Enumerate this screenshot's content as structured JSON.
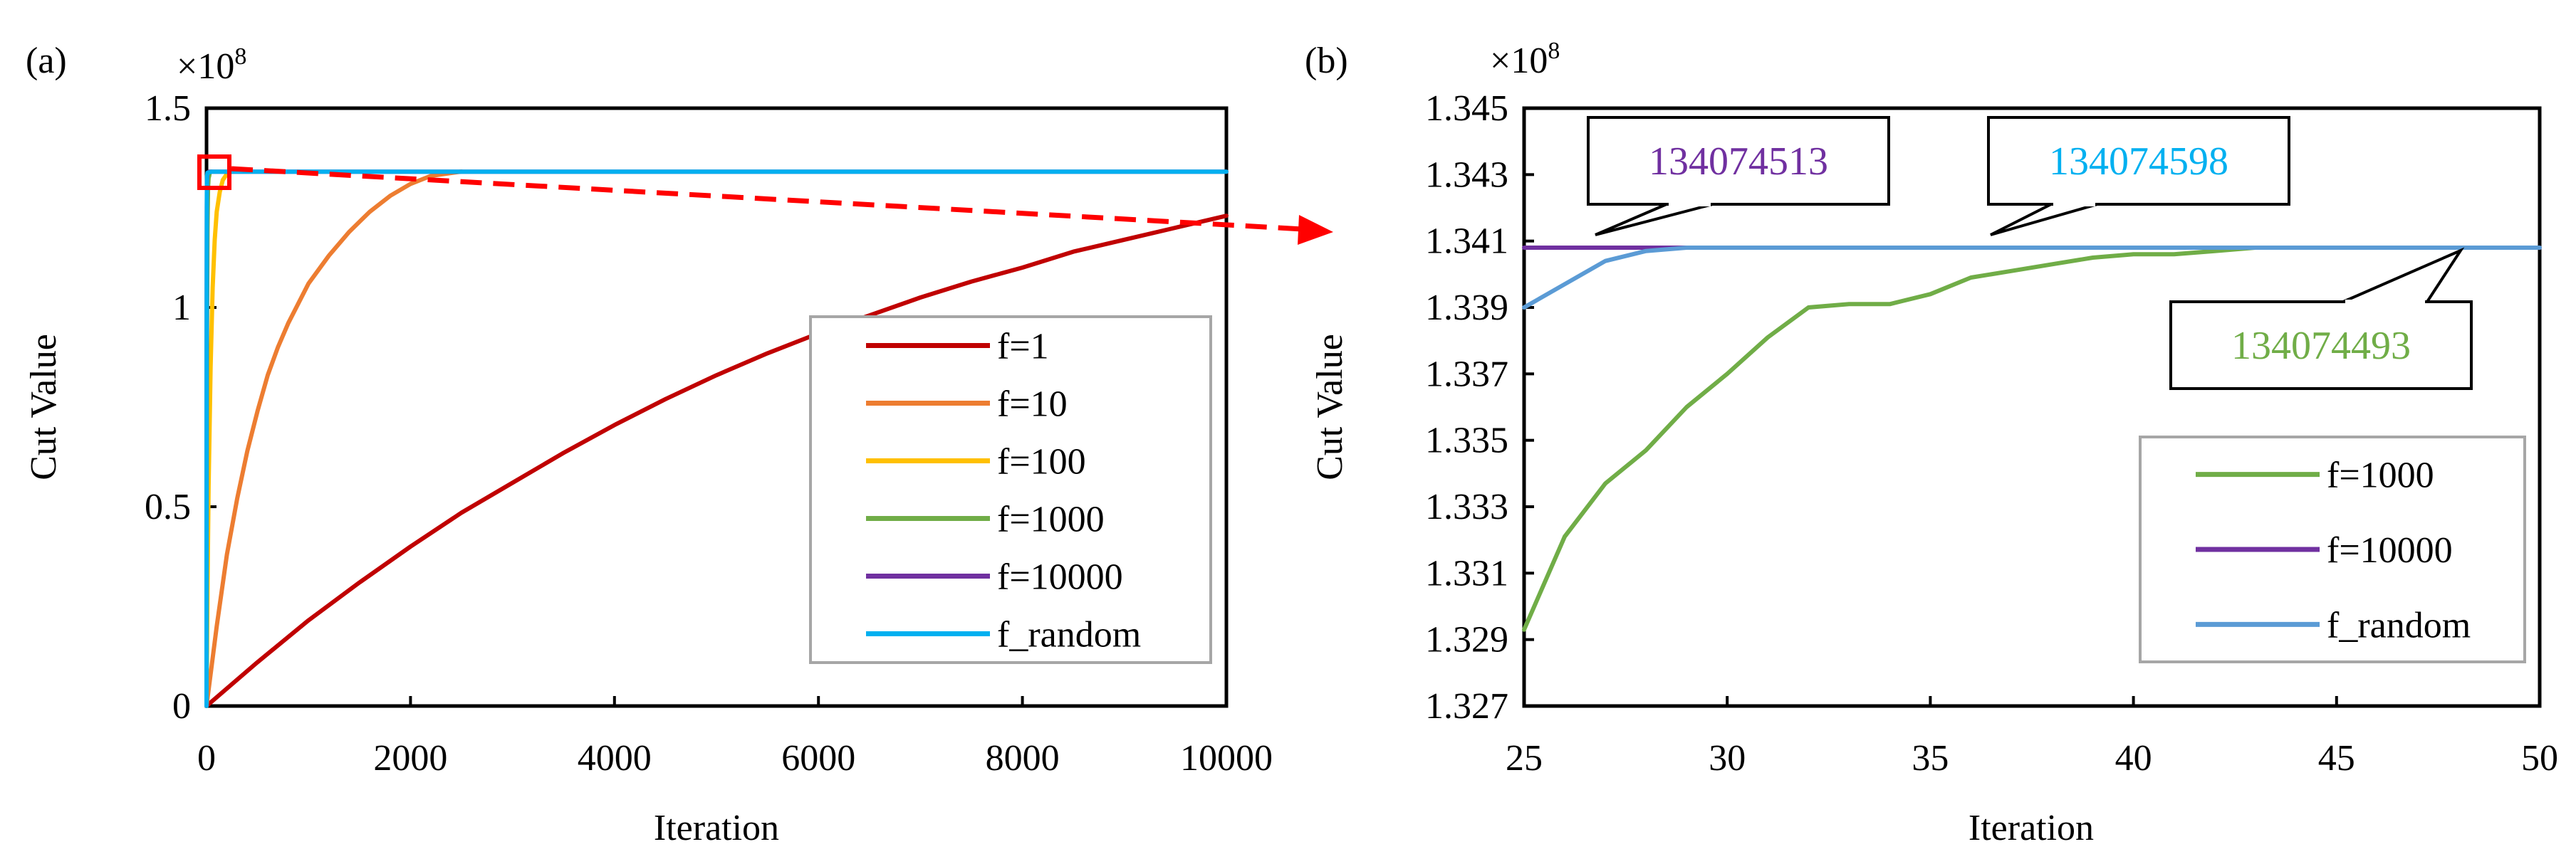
{
  "chart_data": [
    {
      "panel_label": "(a)",
      "type": "line",
      "xlabel": "Iteration",
      "ylabel": "Cut Value",
      "y_multiplier": "×10",
      "y_multiplier_exp": "8",
      "xlim": [
        0,
        10000
      ],
      "ylim": [
        0,
        1.5
      ],
      "x_ticks": [
        0,
        2000,
        4000,
        6000,
        8000,
        10000
      ],
      "x_tick_labels": [
        "0",
        "2000",
        "4000",
        "6000",
        "8000",
        "10000"
      ],
      "y_ticks": [
        0,
        0.5,
        1,
        1.5
      ],
      "y_tick_labels": [
        "0",
        "0.5",
        "1",
        "1.5"
      ],
      "grid": false,
      "legend_position": "bottom-right",
      "series": [
        {
          "name": "f=1",
          "color": "#C00000",
          "x": [
            0,
            500,
            1000,
            1500,
            2000,
            2500,
            3000,
            3500,
            4000,
            4500,
            5000,
            5500,
            6000,
            6500,
            7000,
            7500,
            8000,
            8500,
            9000,
            9500,
            10000
          ],
          "y": [
            0.0,
            0.11,
            0.215,
            0.31,
            0.4,
            0.485,
            0.56,
            0.635,
            0.705,
            0.77,
            0.83,
            0.885,
            0.935,
            0.98,
            1.025,
            1.065,
            1.1,
            1.14,
            1.17,
            1.2,
            1.23
          ]
        },
        {
          "name": "f=10",
          "color": "#ED7D31",
          "x": [
            0,
            100,
            200,
            300,
            400,
            500,
            600,
            700,
            800,
            900,
            1000,
            1200,
            1400,
            1600,
            1800,
            2000,
            2200,
            2500
          ],
          "y": [
            0.0,
            0.2,
            0.38,
            0.52,
            0.64,
            0.74,
            0.83,
            0.9,
            0.96,
            1.01,
            1.06,
            1.13,
            1.19,
            1.24,
            1.28,
            1.31,
            1.33,
            1.341
          ]
        },
        {
          "name": "f=100",
          "color": "#FFC000",
          "x": [
            0,
            10,
            20,
            40,
            60,
            80,
            100,
            130,
            160,
            200,
            250
          ],
          "y": [
            0.0,
            0.3,
            0.55,
            0.85,
            1.05,
            1.17,
            1.24,
            1.29,
            1.32,
            1.335,
            1.341
          ]
        },
        {
          "name": "f=1000",
          "color": "#70AD47",
          "x": [
            0,
            2,
            5,
            10,
            15,
            20,
            25,
            30,
            40,
            50
          ],
          "y": [
            0.0,
            0.5,
            0.95,
            1.2,
            1.3,
            1.325,
            1.3293,
            1.3366,
            1.3405,
            1.3408
          ]
        },
        {
          "name": "f=10000",
          "color": "#7030A0",
          "x": [
            0,
            1,
            3,
            5,
            10,
            25,
            50,
            10000
          ],
          "y": [
            0.0,
            0.85,
            1.25,
            1.32,
            1.338,
            1.3408,
            1.3408,
            1.3408
          ]
        },
        {
          "name": "f_random",
          "color": "#00B0F0",
          "x": [
            0,
            1,
            3,
            5,
            10,
            25,
            50,
            10000
          ],
          "y": [
            0.0,
            0.9,
            1.28,
            1.33,
            1.338,
            1.339,
            1.3408,
            1.3408
          ]
        }
      ]
    },
    {
      "panel_label": "(b)",
      "type": "line",
      "xlabel": "Iteration",
      "ylabel": "Cut Value",
      "y_multiplier": "×10",
      "y_multiplier_exp": "8",
      "xlim": [
        25,
        50
      ],
      "ylim": [
        1.327,
        1.345
      ],
      "x_ticks": [
        25,
        30,
        35,
        40,
        45,
        50
      ],
      "x_tick_labels": [
        "25",
        "30",
        "35",
        "40",
        "45",
        "50"
      ],
      "y_ticks": [
        1.327,
        1.329,
        1.331,
        1.333,
        1.335,
        1.337,
        1.339,
        1.341,
        1.343,
        1.345
      ],
      "y_tick_labels": [
        "1.327",
        "1.329",
        "1.331",
        "1.333",
        "1.335",
        "1.337",
        "1.339",
        "1.341",
        "1.343",
        "1.345"
      ],
      "grid": false,
      "legend_position": "bottom-right",
      "series": [
        {
          "name": "f=1000",
          "color": "#70AD47",
          "x": [
            25,
            26,
            27,
            28,
            29,
            30,
            31,
            32,
            33,
            34,
            35,
            36,
            37,
            38,
            39,
            40,
            41,
            42,
            43,
            44,
            45,
            46,
            47,
            48,
            49,
            50
          ],
          "y": [
            1.3293,
            1.3321,
            1.3337,
            1.3347,
            1.336,
            1.337,
            1.3381,
            1.339,
            1.3391,
            1.3391,
            1.3394,
            1.3399,
            1.3401,
            1.3403,
            1.3405,
            1.3406,
            1.3406,
            1.3407,
            1.3408,
            1.3408,
            1.3408,
            1.3408,
            1.3408,
            1.3408,
            1.3408,
            1.3408
          ]
        },
        {
          "name": "f=10000",
          "color": "#7030A0",
          "x": [
            25,
            30,
            35,
            40,
            45,
            50
          ],
          "y": [
            1.3408,
            1.3408,
            1.3408,
            1.3408,
            1.3408,
            1.3408
          ]
        },
        {
          "name": "f_random",
          "color": "#5B9BD5",
          "x": [
            25,
            26,
            27,
            28,
            29,
            30,
            35,
            40,
            45,
            50
          ],
          "y": [
            1.339,
            1.3397,
            1.3404,
            1.3407,
            1.3408,
            1.3408,
            1.3408,
            1.3408,
            1.3408,
            1.3408
          ]
        }
      ],
      "callouts": [
        {
          "text": "134074513",
          "color": "#7030A0"
        },
        {
          "text": "134074598",
          "color": "#00B0F0"
        },
        {
          "text": "134074493",
          "color": "#70AD47"
        }
      ]
    }
  ]
}
